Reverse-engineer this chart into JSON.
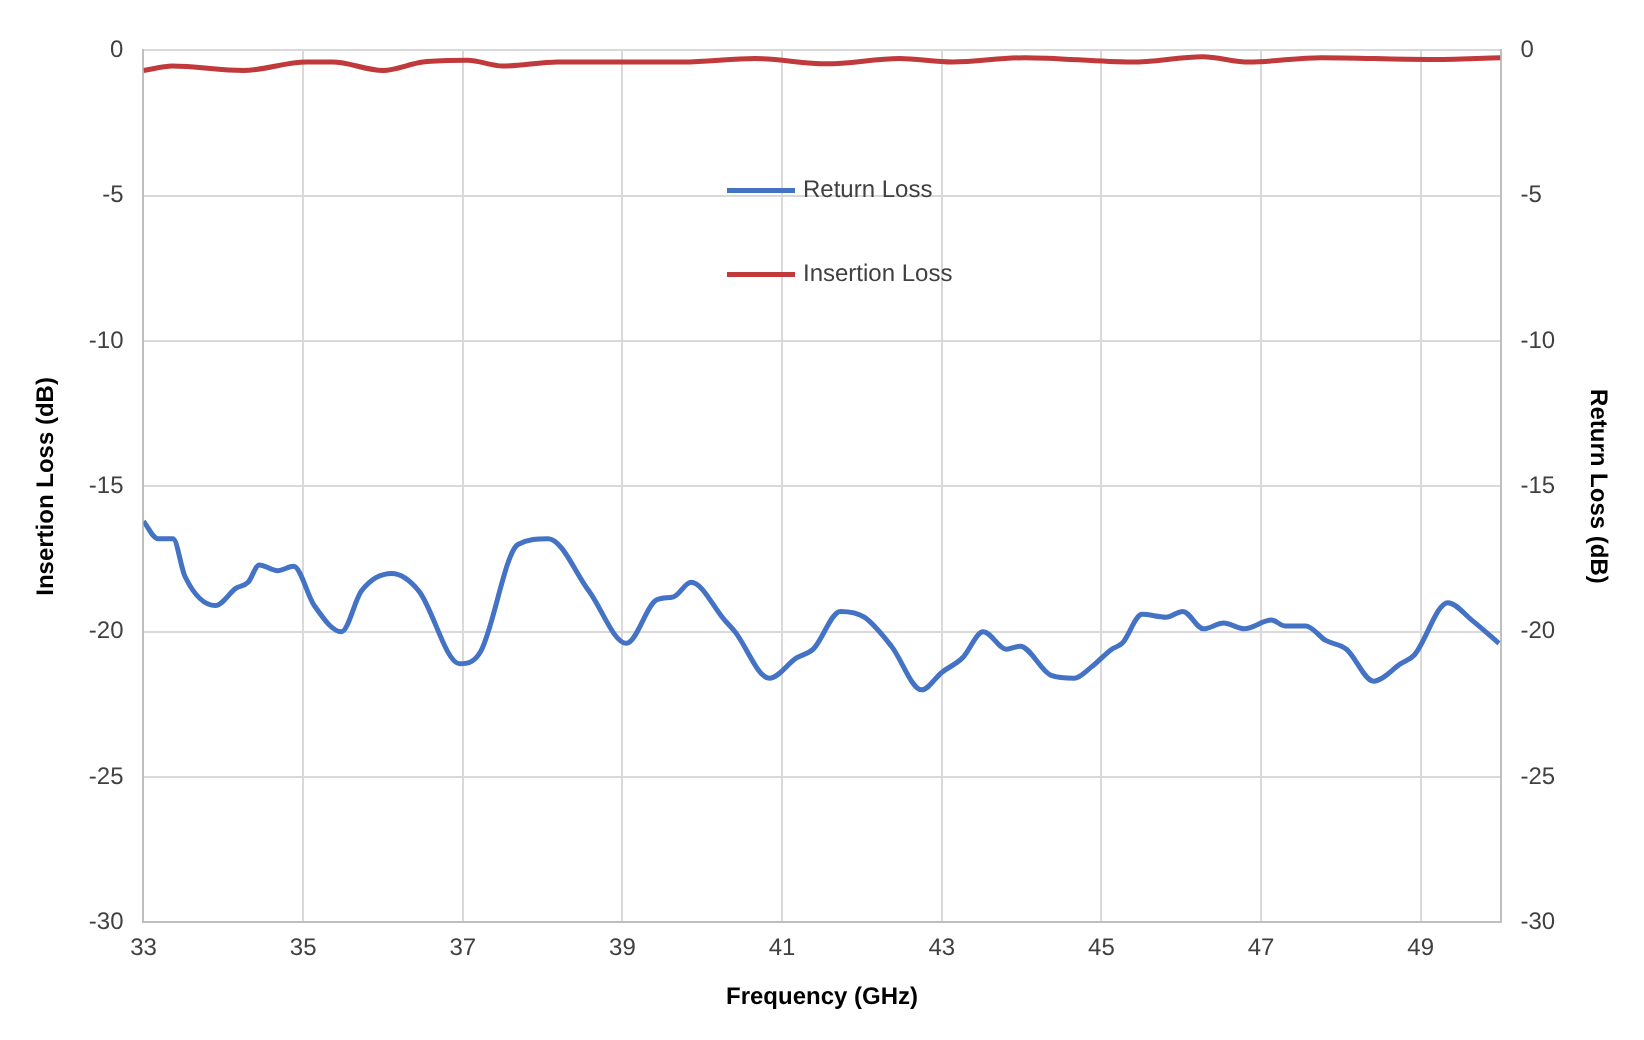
{
  "chart_data": {
    "type": "line",
    "xlabel": "Frequency (GHz)",
    "ylabel": "Insertion Loss (dB)",
    "y2label": "Return Loss (dB)",
    "xlim": [
      33,
      50
    ],
    "xticks": [
      33,
      35,
      37,
      39,
      41,
      43,
      45,
      47,
      49
    ],
    "ylim": [
      -30,
      0
    ],
    "yticks": [
      -30,
      -25,
      -20,
      -15,
      -10,
      -5,
      0
    ],
    "y2lim": [
      -30,
      0
    ],
    "y2ticks": [
      -30,
      -25,
      -20,
      -15,
      -10,
      -5,
      0
    ],
    "grid": true,
    "legend": "top",
    "marker": "none",
    "line_style": "solid",
    "series": [
      {
        "name": "Return Loss",
        "color": "#4472c4",
        "axis": "y2",
        "x": [
          33.0,
          33.18,
          33.37,
          33.52,
          33.9,
          34.16,
          34.31,
          34.45,
          34.68,
          34.88,
          35.14,
          35.48,
          35.73,
          36.11,
          36.45,
          36.96,
          37.22,
          37.69,
          38.07,
          38.58,
          39.05,
          39.43,
          39.64,
          39.86,
          40.28,
          40.41,
          40.84,
          41.18,
          41.39,
          41.73,
          42.03,
          42.37,
          42.75,
          43.0,
          43.26,
          43.52,
          43.81,
          43.98,
          44.37,
          44.66,
          44.88,
          45.13,
          45.26,
          45.51,
          45.81,
          46.02,
          46.28,
          46.53,
          46.79,
          47.13,
          47.3,
          47.56,
          47.81,
          48.07,
          48.41,
          48.75,
          48.92,
          49.34,
          49.64,
          49.98
        ],
        "values": [
          -16.2,
          -16.8,
          -16.8,
          -18.1,
          -19.1,
          -18.5,
          -18.3,
          -17.7,
          -17.9,
          -17.75,
          -19.1,
          -20.0,
          -18.6,
          -18.0,
          -18.6,
          -21.1,
          -20.7,
          -17.0,
          -16.8,
          -18.6,
          -20.4,
          -18.9,
          -18.8,
          -18.3,
          -19.6,
          -20.0,
          -21.6,
          -20.9,
          -20.6,
          -19.3,
          -19.5,
          -20.5,
          -22.0,
          -21.4,
          -20.9,
          -20.0,
          -20.6,
          -20.5,
          -21.5,
          -21.6,
          -21.2,
          -20.6,
          -20.4,
          -19.4,
          -19.5,
          -19.3,
          -19.9,
          -19.7,
          -19.9,
          -19.6,
          -19.8,
          -19.8,
          -20.3,
          -20.6,
          -21.7,
          -21.1,
          -20.8,
          -19.0,
          -19.6,
          -20.4
        ]
      },
      {
        "name": "Insertion Loss",
        "color": "#c0393b",
        "x": [
          33.0,
          33.36,
          34.25,
          35.04,
          35.37,
          36.0,
          36.5,
          37.06,
          37.5,
          38.19,
          39.76,
          40.66,
          41.56,
          42.47,
          43.13,
          44.04,
          45.38,
          46.27,
          46.85,
          47.75,
          49.1,
          50.0
        ],
        "values": [
          -0.69,
          -0.54,
          -0.69,
          -0.4,
          -0.4,
          -0.69,
          -0.4,
          -0.34,
          -0.54,
          -0.4,
          -0.4,
          -0.28,
          -0.46,
          -0.28,
          -0.4,
          -0.25,
          -0.4,
          -0.22,
          -0.4,
          -0.25,
          -0.31,
          -0.25
        ]
      }
    ]
  }
}
